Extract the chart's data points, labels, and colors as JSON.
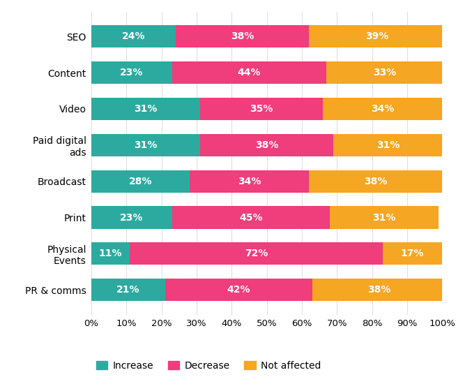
{
  "categories": [
    "SEO",
    "Content",
    "Video",
    "Paid digital\nads",
    "Broadcast",
    "Print",
    "Physical\nEvents",
    "PR & comms"
  ],
  "increase": [
    24,
    23,
    31,
    31,
    28,
    23,
    11,
    21
  ],
  "decrease": [
    38,
    44,
    35,
    38,
    34,
    45,
    72,
    42
  ],
  "not_affected": [
    39,
    33,
    34,
    31,
    38,
    31,
    17,
    38
  ],
  "color_increase": "#2daaa0",
  "color_decrease": "#f03d7c",
  "color_not_affected": "#f5a623",
  "bar_height": 0.62,
  "background_color": "#ffffff",
  "legend_labels": [
    "Increase",
    "Decrease",
    "Not affected"
  ],
  "xlabel_ticks": [
    0,
    10,
    20,
    30,
    40,
    50,
    60,
    70,
    80,
    90,
    100
  ],
  "label_fontsize": 10,
  "tick_fontsize": 9.5,
  "legend_fontsize": 10,
  "ylabel_fontsize": 10
}
